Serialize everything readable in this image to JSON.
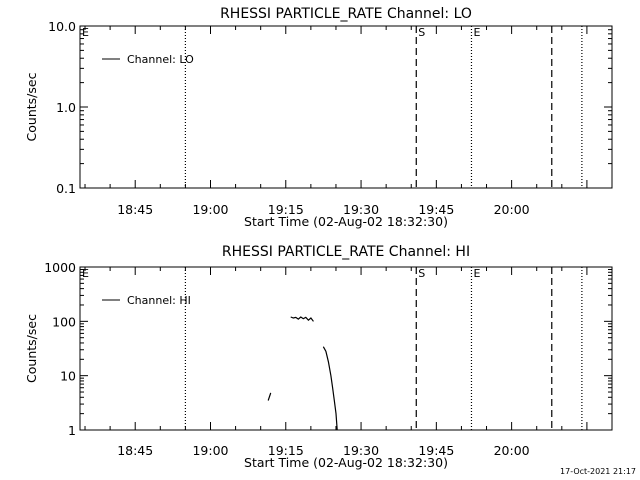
{
  "chart_data": [
    {
      "type": "line",
      "title": "RHESSI PARTICLE_RATE Channel: LO",
      "xlabel": "Start Time (02-Aug-02 18:32:30)",
      "ylabel": "Counts/sec",
      "yscale": "log",
      "ylim": [
        0.1,
        10.0
      ],
      "y_ticks": [
        "0.1",
        "1.0",
        "10.0"
      ],
      "x_range": [
        "18:34",
        "20:20"
      ],
      "x_ticks": [
        "18:45",
        "19:00",
        "19:15",
        "19:30",
        "19:45",
        "20:00"
      ],
      "legend_position": "top-left",
      "series": [
        {
          "name": "Channel: LO",
          "points": []
        }
      ],
      "vlines": [
        {
          "time": "18:55",
          "style": "dotted",
          "label": ""
        },
        {
          "time": "19:41",
          "style": "dashed",
          "label": "S"
        },
        {
          "time": "19:52",
          "style": "dotted",
          "label": "E"
        },
        {
          "time": "20:08",
          "style": "dashed",
          "label": ""
        },
        {
          "time": "20:14",
          "style": "dotted",
          "label": ""
        }
      ],
      "edge_marker": "E"
    },
    {
      "type": "line",
      "title": "RHESSI PARTICLE_RATE Channel: HI",
      "xlabel": "Start Time (02-Aug-02 18:32:30)",
      "ylabel": "Counts/sec",
      "yscale": "log",
      "ylim": [
        1,
        1000
      ],
      "y_ticks": [
        "1",
        "10",
        "100",
        "1000"
      ],
      "x_range": [
        "18:34",
        "20:20"
      ],
      "x_ticks": [
        "18:45",
        "19:00",
        "19:15",
        "19:30",
        "19:45",
        "20:00"
      ],
      "legend_position": "top-left",
      "series": [
        {
          "name": "Channel: HI",
          "segments": [
            [
              [
                "19:11:30",
                3.5
              ],
              [
                "19:12:00",
                4.8
              ]
            ],
            [
              [
                "19:16:00",
                120
              ],
              [
                "19:16:30",
                115
              ],
              [
                "19:17:00",
                118
              ],
              [
                "19:17:30",
                110
              ],
              [
                "19:18:00",
                120
              ],
              [
                "19:18:30",
                112
              ],
              [
                "19:19:00",
                118
              ],
              [
                "19:19:30",
                105
              ],
              [
                "19:20:00",
                115
              ],
              [
                "19:20:30",
                100
              ]
            ],
            [
              [
                "19:22:30",
                34
              ],
              [
                "19:23:00",
                28
              ],
              [
                "19:23:30",
                18
              ],
              [
                "19:24:00",
                10
              ],
              [
                "19:24:20",
                6
              ],
              [
                "19:24:40",
                3.5
              ],
              [
                "19:25:00",
                2
              ],
              [
                "19:25:15",
                1
              ]
            ]
          ]
        }
      ],
      "vlines": [
        {
          "time": "18:55",
          "style": "dotted",
          "label": ""
        },
        {
          "time": "19:41",
          "style": "dashed",
          "label": "S"
        },
        {
          "time": "19:52",
          "style": "dotted",
          "label": "E"
        },
        {
          "time": "20:08",
          "style": "dashed",
          "label": ""
        },
        {
          "time": "20:14",
          "style": "dotted",
          "label": ""
        }
      ],
      "edge_marker": "E"
    }
  ],
  "timestamp": "17-Oct-2021 21:17"
}
